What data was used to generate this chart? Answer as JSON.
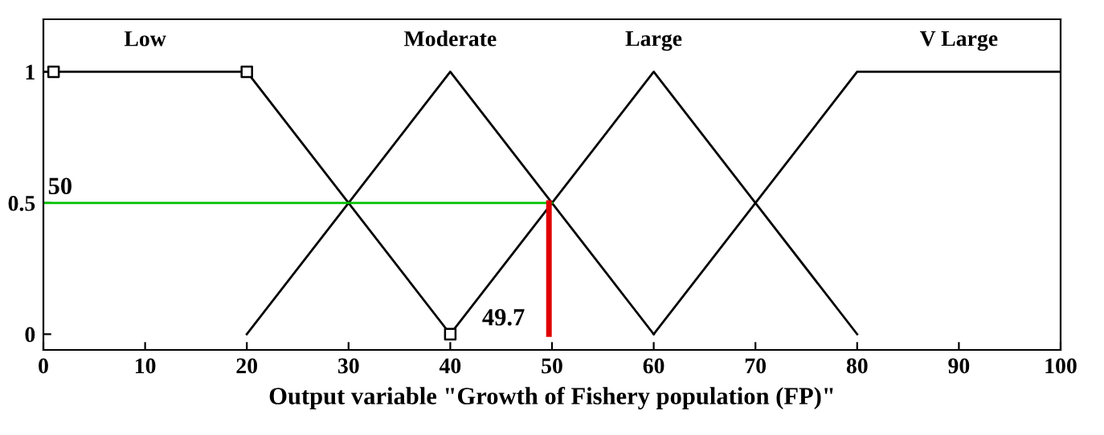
{
  "chart_data": {
    "type": "line",
    "xlabel": "Output variable \"Growth of Fishery population (FP)\"",
    "series": [
      {
        "name": "Low",
        "color": "#000000",
        "x": [
          0,
          20,
          40
        ],
        "values": [
          1,
          1,
          0
        ]
      },
      {
        "name": "Moderate",
        "color": "#000000",
        "x": [
          20,
          40,
          60
        ],
        "values": [
          0,
          1,
          0
        ]
      },
      {
        "name": "Large",
        "color": "#000000",
        "x": [
          40,
          60,
          80
        ],
        "values": [
          0,
          1,
          0
        ]
      },
      {
        "name": "V Large",
        "color": "#000000",
        "x": [
          60,
          80,
          100
        ],
        "values": [
          0,
          1,
          1
        ]
      },
      {
        "color": "#00c000",
        "x": [
          0,
          50
        ],
        "values": [
          0.5,
          0.5
        ]
      },
      {
        "color": "#e00000",
        "x": [
          49.7,
          49.7
        ],
        "values": [
          0,
          0.5
        ]
      },
      {
        "type": "scatter",
        "marker": "square",
        "color": "#000000",
        "x": [
          1,
          20,
          40
        ],
        "values": [
          1,
          1,
          0
        ]
      }
    ],
    "annotations": [
      {
        "text": "50",
        "x": 0,
        "y": 0.5
      },
      {
        "text": "49.7",
        "x": 49.7,
        "y": 0
      }
    ],
    "xlim": [
      0,
      100
    ],
    "xticks": [
      0,
      10,
      20,
      30,
      40,
      50,
      60,
      70,
      80,
      90,
      100
    ],
    "ylim": [
      -0.06,
      1.2
    ],
    "yticks": [
      0,
      0.5,
      1
    ],
    "grid": false,
    "legend": false
  }
}
